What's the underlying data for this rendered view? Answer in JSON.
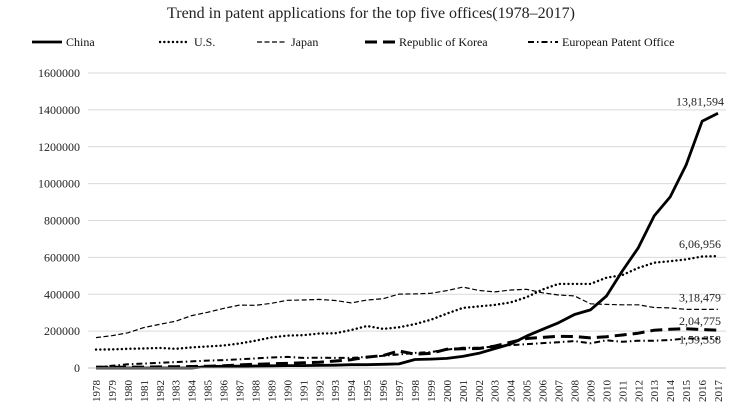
{
  "chart_data": {
    "type": "line",
    "title": "Trend in patent applications for the top five offices(1978–2017)",
    "xlabel": "",
    "ylabel": "",
    "ylim": [
      0,
      1600000
    ],
    "yticks": [
      "0",
      "200000",
      "400000",
      "600000",
      "800000",
      "1000000",
      "1200000",
      "1400000",
      "1600000"
    ],
    "grid": "horizontal",
    "legend_position": "top",
    "x": [
      "1978",
      "1979",
      "1980",
      "1981",
      "1982",
      "1983",
      "1984",
      "1985",
      "1986",
      "1987",
      "1988",
      "1989",
      "1990",
      "1991",
      "1992",
      "1993",
      "1994",
      "1995",
      "1996",
      "1997",
      "1998",
      "1999",
      "2000",
      "2001",
      "2002",
      "2003",
      "2004",
      "2005",
      "2006",
      "2007",
      "2008",
      "2009",
      "2010",
      "2011",
      "2012",
      "2013",
      "2014",
      "2015",
      "2016",
      "2017"
    ],
    "series": [
      {
        "name": "China",
        "style": "solid-thick",
        "color": "#000000",
        "values": [
          0,
          0,
          0,
          0,
          0,
          0,
          0,
          8000,
          9000,
          10000,
          11000,
          12000,
          13000,
          13000,
          14000,
          15000,
          18000,
          18000,
          20000,
          22000,
          46000,
          48000,
          52000,
          63000,
          80000,
          105000,
          130000,
          173000,
          210000,
          245000,
          290000,
          315000,
          390000,
          526000,
          652000,
          825000,
          928000,
          1101000,
          1338000,
          1381594
        ],
        "end_label": "13,81,594"
      },
      {
        "name": "U.S.",
        "style": "dotted",
        "color": "#000000",
        "values": [
          100000,
          101000,
          104000,
          106000,
          109000,
          104000,
          112000,
          117000,
          122000,
          133000,
          148000,
          166000,
          176000,
          178000,
          187000,
          188000,
          206000,
          228000,
          212000,
          221000,
          238000,
          262000,
          295000,
          326000,
          334000,
          342000,
          356000,
          384000,
          426000,
          456000,
          456000,
          456000,
          490000,
          504000,
          543000,
          571000,
          579000,
          589000,
          605000,
          606956
        ],
        "end_label": "6,06,956"
      },
      {
        "name": "Japan",
        "style": "short-dash",
        "color": "#000000",
        "values": [
          165000,
          175000,
          191000,
          219000,
          237000,
          254000,
          284000,
          302000,
          323000,
          341000,
          340000,
          351000,
          367000,
          369000,
          372000,
          366000,
          353000,
          369000,
          376000,
          401000,
          402000,
          405000,
          420000,
          439000,
          421000,
          413000,
          423000,
          427000,
          408000,
          396000,
          391000,
          348000,
          345000,
          343000,
          343000,
          328000,
          326000,
          318000,
          318000,
          318479
        ],
        "end_label": "3,18,479"
      },
      {
        "name": "Republic of Korea",
        "style": "long-dash",
        "color": "#000000",
        "values": [
          5000,
          4000,
          5000,
          5000,
          6000,
          7000,
          8000,
          10000,
          12000,
          17000,
          20000,
          23000,
          25000,
          28000,
          31000,
          38000,
          45000,
          59000,
          68000,
          92000,
          75000,
          80000,
          102000,
          104000,
          106000,
          119000,
          140000,
          160000,
          166000,
          172000,
          171000,
          163000,
          170000,
          179000,
          189000,
          205000,
          210000,
          213000,
          208000,
          204775
        ],
        "end_label": "2,04,775"
      },
      {
        "name": "European Patent Office",
        "style": "dash-dot",
        "color": "#000000",
        "values": [
          4000,
          12000,
          20000,
          24000,
          28000,
          32000,
          36000,
          40000,
          43000,
          47000,
          52000,
          57000,
          60000,
          55000,
          56000,
          55000,
          55000,
          60000,
          66000,
          73000,
          82000,
          86000,
          100000,
          110000,
          110000,
          116000,
          124000,
          129000,
          135000,
          140000,
          146000,
          134000,
          150000,
          142000,
          148000,
          148000,
          152000,
          160000,
          160000,
          159358
        ],
        "end_label": "1,59,358"
      }
    ]
  }
}
